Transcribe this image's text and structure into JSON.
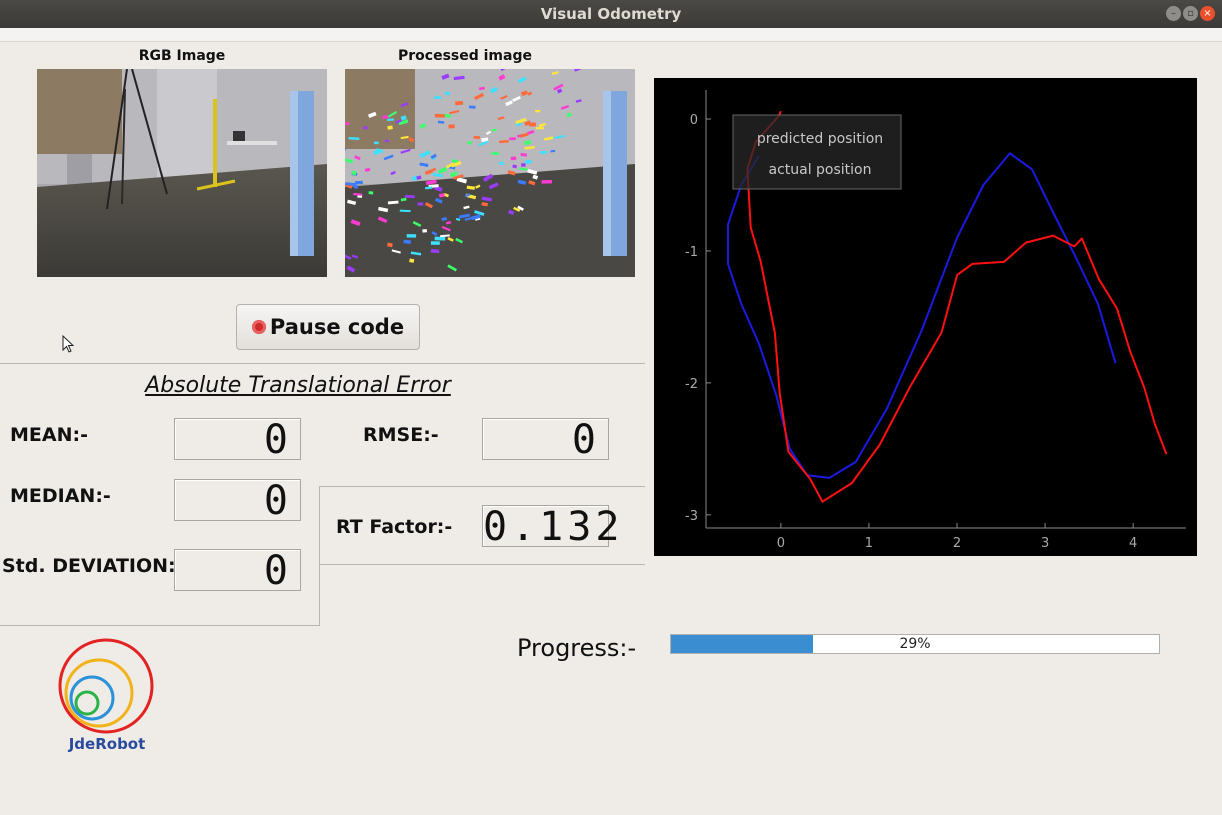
{
  "window": {
    "title": "Visual Odometry"
  },
  "images": {
    "rgb_label": "RGB Image",
    "processed_label": "Processed image"
  },
  "controls": {
    "pause_label": "Pause code"
  },
  "metrics": {
    "title": "Absolute Translational Error",
    "mean_label": "MEAN:-",
    "mean_value": "0",
    "rmse_label": "RMSE:-",
    "rmse_value": "0",
    "median_label": "MEDIAN:-",
    "median_value": "0",
    "rt_label": "RT Factor:-",
    "rt_value": "0.132",
    "std_label": "Std. DEVIATION:-",
    "std_value": "0"
  },
  "progress": {
    "label": "Progress:-",
    "percent": 29,
    "text": "29%"
  },
  "logo": {
    "text": "JdeRobot"
  },
  "colors": {
    "predicted": "#1a1ae0",
    "actual": "#ff1010",
    "progress": "#3a8dd0"
  },
  "chart_data": {
    "type": "line",
    "xlim": [
      -0.85,
      4.6
    ],
    "ylim": [
      -3.1,
      0.22
    ],
    "x_ticks": [
      0,
      1,
      2,
      3,
      4
    ],
    "y_ticks": [
      0,
      -1,
      -2,
      -3
    ],
    "legend": [
      "predicted position",
      "actual position"
    ],
    "legend_placement": "top-left",
    "series": [
      {
        "name": "predicted position",
        "color": "#1a1ae0",
        "x": [
          -0.25,
          -0.45,
          -0.6,
          -0.6,
          -0.45,
          -0.25,
          -0.05,
          0.1,
          0.3,
          0.55,
          0.85,
          1.2,
          1.6,
          2.0,
          2.3,
          2.6,
          2.85,
          3.1,
          3.35,
          3.6,
          3.8
        ],
        "y": [
          -0.28,
          -0.5,
          -0.8,
          -1.1,
          -1.4,
          -1.7,
          -2.1,
          -2.5,
          -2.7,
          -2.72,
          -2.6,
          -2.2,
          -1.6,
          -0.9,
          -0.5,
          -0.26,
          -0.38,
          -0.72,
          -1.05,
          -1.4,
          -1.85
        ]
      },
      {
        "name": "actual position",
        "color": "#ff1010",
        "x": [
          0.0,
          -0.05,
          -0.25,
          -0.4,
          -0.35,
          -0.2,
          -0.1,
          0.0,
          0.1,
          0.3,
          0.5,
          0.8,
          1.1,
          1.5,
          1.8,
          2.0,
          2.2,
          2.5,
          2.8,
          3.1,
          3.3,
          3.45,
          3.6,
          3.8,
          4.0,
          4.1,
          4.25,
          4.4
        ],
        "y": [
          0.06,
          0.0,
          -0.15,
          -0.4,
          -0.8,
          -1.1,
          -1.6,
          -2.1,
          -2.5,
          -2.75,
          -2.88,
          -2.78,
          -2.45,
          -2.05,
          -1.6,
          -1.2,
          -1.08,
          -1.1,
          -0.92,
          -0.9,
          -0.95,
          -0.92,
          -1.2,
          -1.45,
          -1.75,
          -2.05,
          -2.3,
          -2.55
        ]
      }
    ]
  }
}
